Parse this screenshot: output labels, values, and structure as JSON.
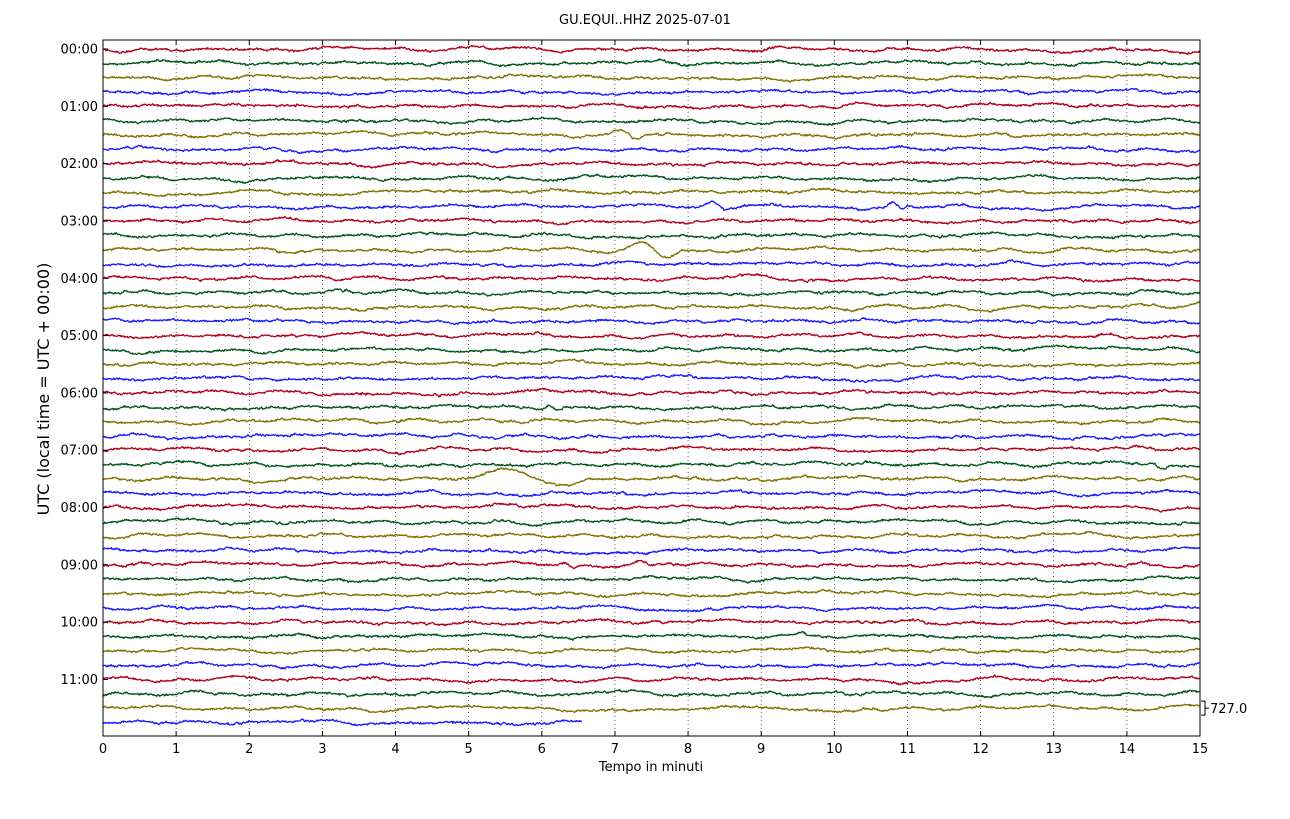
{
  "chart_data": {
    "type": "line",
    "title": "GU.EQUI..HHZ 2025-07-01",
    "xlabel": "Tempo in minuti",
    "ylabel": "UTC (local time = UTC + 00:00)",
    "xlim": [
      0,
      15
    ],
    "x_ticks": [
      "0",
      "1",
      "2",
      "3",
      "4",
      "5",
      "6",
      "7",
      "8",
      "9",
      "10",
      "11",
      "12",
      "13",
      "14",
      "15"
    ],
    "y_tick_labels": [
      "00:00",
      "01:00",
      "02:00",
      "03:00",
      "04:00",
      "05:00",
      "06:00",
      "07:00",
      "08:00",
      "09:00",
      "10:00",
      "11:00"
    ],
    "grid": "vertical dotted at each minute",
    "rows_per_hour": 4,
    "minutes_per_row": 15,
    "row_count": 48,
    "last_row_end_minute": 6.55,
    "trace_colors": [
      "#b0001c",
      "#00551a",
      "#7f7300",
      "#1a1aff"
    ],
    "scale_label": "727.0",
    "events": [
      {
        "row": 14,
        "start_minute": 7.1,
        "end_minute": 7.9,
        "amplitude": 1.9
      },
      {
        "row": 30,
        "start_minute": 5.1,
        "end_minute": 6.6,
        "amplitude": 2.2
      },
      {
        "row": 11,
        "start_minute": 8.2,
        "end_minute": 8.6,
        "amplitude": 0.9
      },
      {
        "row": 11,
        "start_minute": 10.7,
        "end_minute": 11.0,
        "amplitude": 0.9
      },
      {
        "row": 6,
        "start_minute": 6.9,
        "end_minute": 7.4,
        "amplitude": 0.8
      },
      {
        "row": 25,
        "start_minute": 6.0,
        "end_minute": 6.3,
        "amplitude": 0.8
      },
      {
        "row": 29,
        "start_minute": 14.2,
        "end_minute": 14.6,
        "amplitude": 0.8
      },
      {
        "row": 36,
        "start_minute": 7.2,
        "end_minute": 7.6,
        "amplitude": 0.7
      },
      {
        "row": 36,
        "start_minute": 6.2,
        "end_minute": 6.5,
        "amplitude": 0.6
      }
    ]
  }
}
